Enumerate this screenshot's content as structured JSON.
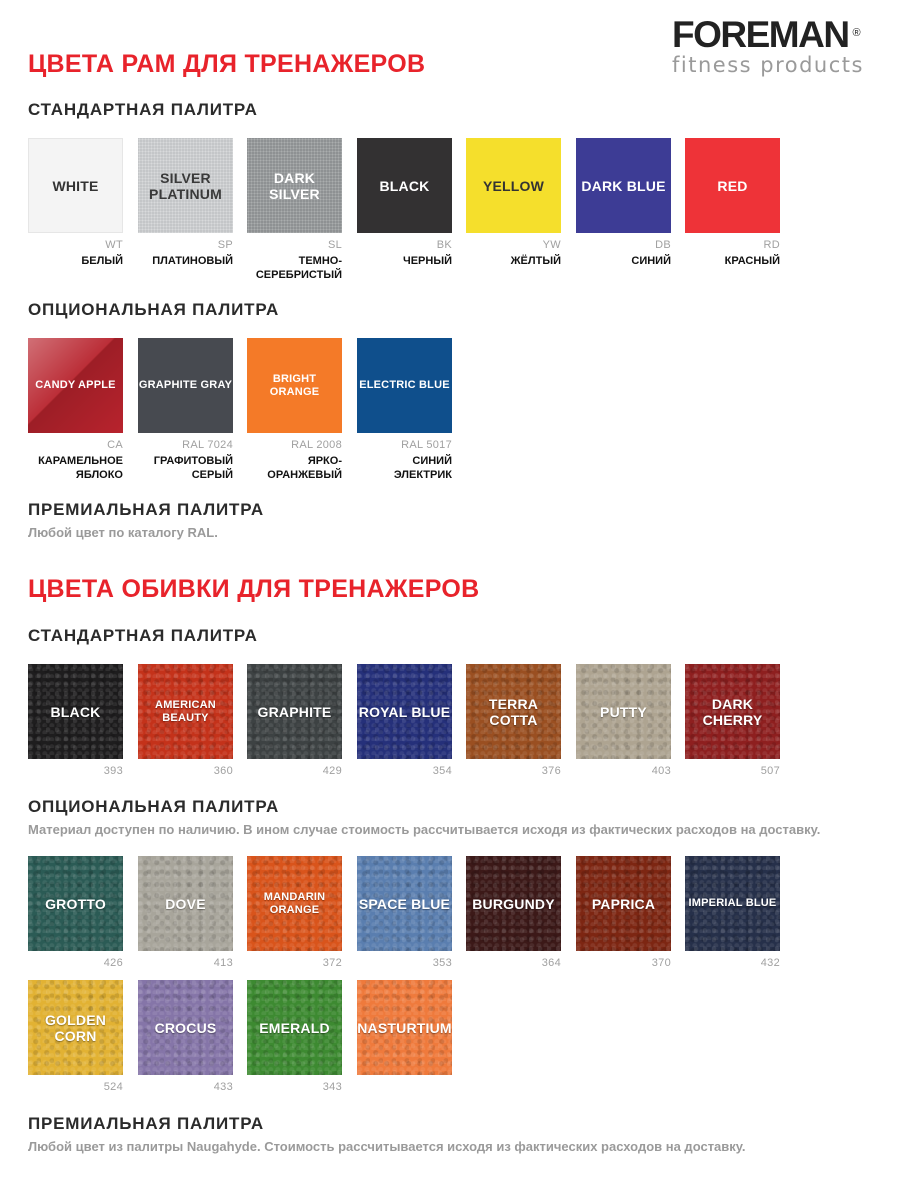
{
  "logo": {
    "main": "FOREMAN",
    "reg": "®",
    "sub": "fitness products"
  },
  "frames": {
    "title": "ЦВЕТА РАМ ДЛЯ ТРЕНАЖЕРОВ",
    "standard": {
      "heading": "СТАНДАРТНАЯ ПАЛИТРА",
      "items": [
        {
          "name": "WHITE",
          "code": "WT",
          "ru": "БЕЛЫЙ",
          "color": "#f4f4f4"
        },
        {
          "name": "SILVER PLATINUM",
          "code": "SP",
          "ru": "ПЛАТИНОВЫЙ",
          "color": "#c4c6c8"
        },
        {
          "name": "DARK SILVER",
          "code": "SL",
          "ru": "ТЕМНО-СЕРЕБРИСТЫЙ",
          "color": "#8e9193"
        },
        {
          "name": "BLACK",
          "code": "BK",
          "ru": "ЧЕРНЫЙ",
          "color": "#333132"
        },
        {
          "name": "YELLOW",
          "code": "YW",
          "ru": "ЖЁЛТЫЙ",
          "color": "#f5df2c"
        },
        {
          "name": "DARK BLUE",
          "code": "DB",
          "ru": "СИНИЙ",
          "color": "#3d3c95"
        },
        {
          "name": "RED",
          "code": "RD",
          "ru": "КРАСНЫЙ",
          "color": "#ee3338"
        }
      ]
    },
    "optional": {
      "heading": "ОПЦИОНАЛЬНАЯ ПАЛИТРА",
      "items": [
        {
          "name": "CANDY APPLE",
          "code": "CA",
          "ru": "КАРАМЕЛЬНОЕ ЯБЛОКО",
          "color": "#b8232d"
        },
        {
          "name": "GRAPHITE GRAY",
          "code": "RAL 7024",
          "ru": "ГРАФИТОВЫЙ СЕРЫЙ",
          "color": "#474a50"
        },
        {
          "name": "BRIGHT ORANGE",
          "code": "RAL 2008",
          "ru": "ЯРКО-ОРАНЖЕВЫЙ",
          "color": "#f47a28"
        },
        {
          "name": "ELECTRIC BLUE",
          "code": "RAL 5017",
          "ru": "СИНИЙ ЭЛЕКТРИК",
          "color": "#0f4f8c"
        }
      ]
    },
    "premium": {
      "heading": "ПРЕМИАЛЬНАЯ ПАЛИТРА",
      "note": "Любой цвет по каталогу RAL."
    }
  },
  "upholstery": {
    "title": "ЦВЕТА ОБИВКИ ДЛЯ ТРЕНАЖЕРОВ",
    "standard": {
      "heading": "СТАНДАРТНАЯ ПАЛИТРА",
      "items": [
        {
          "name": "BLACK",
          "code": "393",
          "color": "#1e1d1e"
        },
        {
          "name": "AMERICAN BEAUTY",
          "code": "360",
          "color": "#c4321a"
        },
        {
          "name": "GRAPHITE",
          "code": "429",
          "color": "#3d4243"
        },
        {
          "name": "ROYAL BLUE",
          "code": "354",
          "color": "#25307a"
        },
        {
          "name": "TERRA COTTA",
          "code": "376",
          "color": "#9a4f21"
        },
        {
          "name": "PUTTY",
          "code": "403",
          "color": "#aea491"
        },
        {
          "name": "DARK CHERRY",
          "code": "507",
          "color": "#8e1f1f"
        }
      ]
    },
    "optional": {
      "heading": "ОПЦИОНАЛЬНАЯ ПАЛИТРА",
      "note": "Материал доступен по наличию. В ином случае стоимость рассчитывается исходя из фактических расходов на доставку.",
      "items": [
        {
          "name": "GROTTO",
          "code": "426",
          "color": "#2b5b55"
        },
        {
          "name": "DOVE",
          "code": "413",
          "color": "#a8a59b"
        },
        {
          "name": "MANDARIN ORANGE",
          "code": "372",
          "color": "#d9541b"
        },
        {
          "name": "SPACE BLUE",
          "code": "353",
          "color": "#5a7eaf"
        },
        {
          "name": "BURGUNDY",
          "code": "364",
          "color": "#3c1918"
        },
        {
          "name": "PAPRICA",
          "code": "370",
          "color": "#7d2612"
        },
        {
          "name": "IMPERIAL BLUE",
          "code": "432",
          "color": "#26304a"
        },
        {
          "name": "GOLDEN CORN",
          "code": "524",
          "color": "#e2b233"
        },
        {
          "name": "CROCUS",
          "code": "433",
          "color": "#8575a8"
        },
        {
          "name": "EMERALD",
          "code": "343",
          "color": "#3d8a31"
        },
        {
          "name": "NASTURTIUM",
          "code": "",
          "color": "#ef7a3c"
        }
      ]
    },
    "premium": {
      "heading": "ПРЕМИАЛЬНАЯ ПАЛИТРА",
      "note": "Любой цвет из палитры Naugahyde. Стоимость рассчитывается исходя из фактических расходов на доставку."
    }
  }
}
